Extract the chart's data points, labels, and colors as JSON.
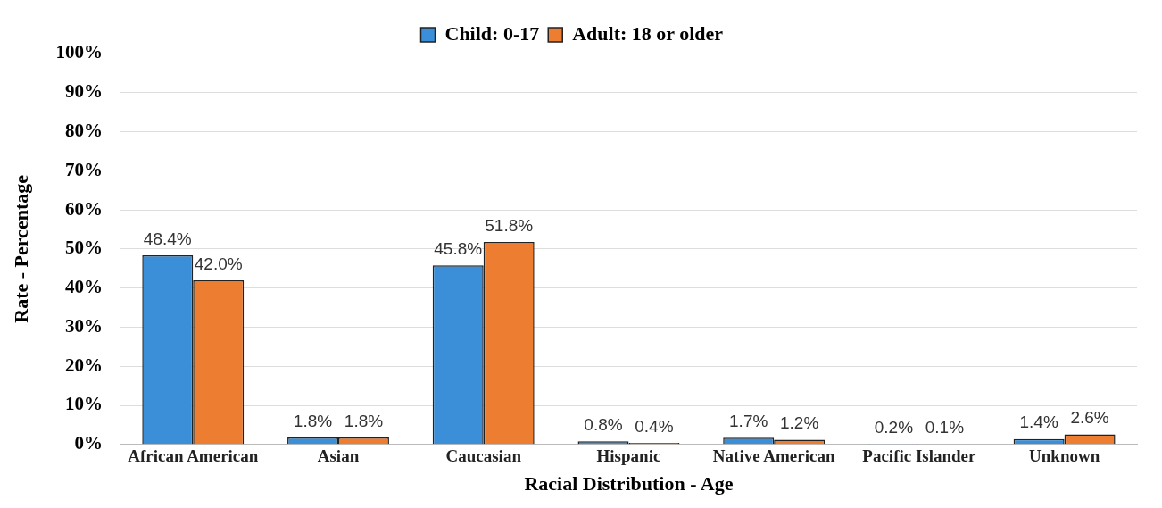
{
  "chart_data": {
    "type": "bar",
    "xlabel": "Racial Distribution - Age",
    "ylabel": "Rate - Percentage",
    "categories": [
      "African American",
      "Asian",
      "Caucasian",
      "Hispanic",
      "Native American",
      "Pacific Islander",
      "Unknown"
    ],
    "series": [
      {
        "name": "Child: 0-17",
        "color": "#3b8fd9",
        "values": [
          48.4,
          1.8,
          45.8,
          0.8,
          1.7,
          0.2,
          1.4
        ],
        "value_labels": [
          "48.4%",
          "1.8%",
          "45.8%",
          "0.8%",
          "1.7%",
          "0.2%",
          "1.4%"
        ]
      },
      {
        "name": "Adult: 18 or older",
        "color": "#ed7d31",
        "values": [
          42.0,
          1.8,
          51.8,
          0.4,
          1.2,
          0.1,
          2.6
        ],
        "value_labels": [
          "42.0%",
          "1.8%",
          "51.8%",
          "0.4%",
          "1.2%",
          "0.1%",
          "2.6%"
        ]
      }
    ],
    "ylim": [
      0,
      100
    ],
    "yticks": [
      {
        "value": 0,
        "label": "0%"
      },
      {
        "value": 10,
        "label": "10%"
      },
      {
        "value": 20,
        "label": "20%"
      },
      {
        "value": 30,
        "label": "30%"
      },
      {
        "value": 40,
        "label": "40%"
      },
      {
        "value": 50,
        "label": "50%"
      },
      {
        "value": 60,
        "label": "60%"
      },
      {
        "value": 70,
        "label": "70%"
      },
      {
        "value": 80,
        "label": "80%"
      },
      {
        "value": 90,
        "label": "90%"
      },
      {
        "value": 100,
        "label": "100%"
      }
    ],
    "grid": "y",
    "legend": "top"
  }
}
